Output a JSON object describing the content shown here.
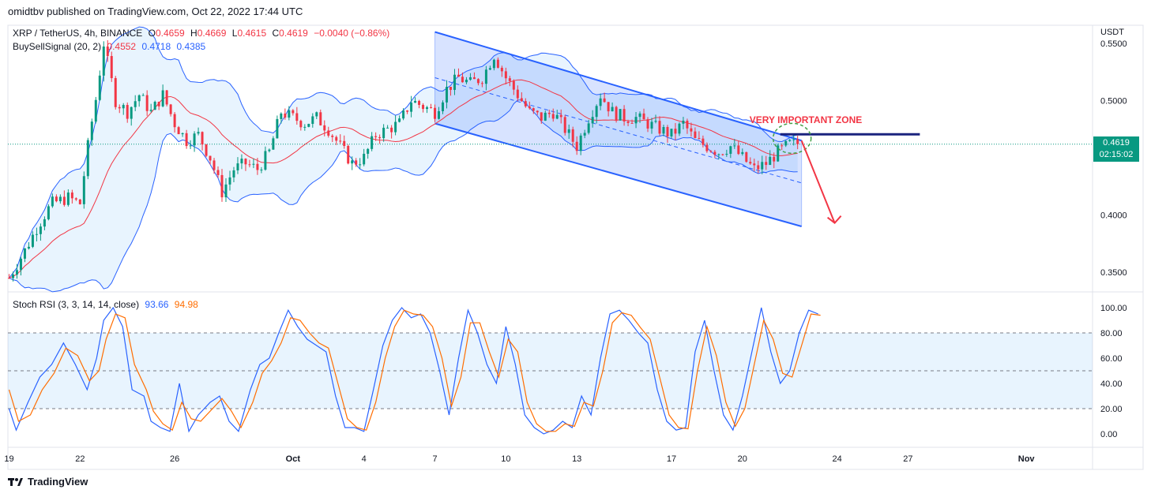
{
  "header": {
    "publisher_line": "omidtbv published on TradingView.com, Oct 22, 2022 17:44 UTC"
  },
  "main_legend": {
    "symbol": "XRP / TetherUS, 4h, BINANCE",
    "open_label": "O",
    "open": "0.4659",
    "high_label": "H",
    "high": "0.4669",
    "low_label": "L",
    "low": "0.4615",
    "close_label": "C",
    "close": "0.4619",
    "change": "−0.0040 (−0.86%)"
  },
  "indicator_legend": {
    "name": "BuySellSignal (20, 2)",
    "v1": "0.4552",
    "v2": "0.4718",
    "v3": "0.4385"
  },
  "stoch_legend": {
    "name": "Stoch RSI (3, 3, 14, 14, close)",
    "k": "93.66",
    "d": "94.98"
  },
  "price_badge": {
    "price": "0.4619",
    "countdown": "02:15:02"
  },
  "annotation": {
    "text": "VERY IMPORTANT ZONE"
  },
  "footer": {
    "brand": "TradingView"
  },
  "colors": {
    "up": "#089981",
    "down": "#f23645",
    "basis": "#f23645",
    "bands": "#2962ff",
    "k_line": "#2962ff",
    "d_line": "#ff6d00",
    "channel": "#2962ff",
    "annotation": "#f23645"
  },
  "chart_data": [
    {
      "type": "candlestick",
      "title": "XRP / TetherUS, 4h, BINANCE",
      "y_axis_unit": "USDT",
      "y_ticks": [
        0.55,
        0.5,
        0.45,
        0.4,
        0.35
      ],
      "y_tick_labels": [
        "0.5500",
        "0.5000",
        "",
        "0.4000",
        "0.3500"
      ],
      "ylim": [
        0.33,
        0.6
      ],
      "x_tick_labels": [
        "19",
        "22",
        "26",
        "Oct",
        "4",
        "7",
        "10",
        "13",
        "17",
        "20",
        "24",
        "27",
        "Nov"
      ],
      "x_tick_days": [
        -11,
        -8,
        -4,
        1,
        4,
        7,
        10,
        13,
        17,
        20,
        24,
        27,
        32
      ],
      "xlim_days": [
        -11.05,
        34.8
      ],
      "last_price": 0.4619,
      "close_path": [
        [
          -11,
          0.345
        ],
        [
          -10.3,
          0.37
        ],
        [
          -9.8,
          0.39
        ],
        [
          -9.2,
          0.41
        ],
        [
          -8.5,
          0.415
        ],
        [
          -8,
          0.41
        ],
        [
          -7.6,
          0.47
        ],
        [
          -7.3,
          0.505
        ],
        [
          -7,
          0.55
        ],
        [
          -6.5,
          0.5
        ],
        [
          -6,
          0.49
        ],
        [
          -5.5,
          0.505
        ],
        [
          -5,
          0.49
        ],
        [
          -4.5,
          0.505
        ],
        [
          -4,
          0.48
        ],
        [
          -3.5,
          0.465
        ],
        [
          -3,
          0.47
        ],
        [
          -2.5,
          0.45
        ],
        [
          -2,
          0.42
        ],
        [
          -1.5,
          0.44
        ],
        [
          -1,
          0.445
        ],
        [
          -0.5,
          0.44
        ],
        [
          0,
          0.455
        ],
        [
          0.5,
          0.49
        ],
        [
          1,
          0.485
        ],
        [
          1.5,
          0.48
        ],
        [
          2,
          0.485
        ],
        [
          2.5,
          0.475
        ],
        [
          3,
          0.46
        ],
        [
          3.5,
          0.445
        ],
        [
          4,
          0.45
        ],
        [
          4.5,
          0.47
        ],
        [
          5,
          0.475
        ],
        [
          5.5,
          0.48
        ],
        [
          6,
          0.5
        ],
        [
          6.5,
          0.495
        ],
        [
          7,
          0.49
        ],
        [
          7.5,
          0.51
        ],
        [
          8,
          0.52
        ],
        [
          8.5,
          0.515
        ],
        [
          9,
          0.52
        ],
        [
          9.5,
          0.54
        ],
        [
          10,
          0.52
        ],
        [
          10.5,
          0.505
        ],
        [
          11,
          0.49
        ],
        [
          11.5,
          0.485
        ],
        [
          12,
          0.49
        ],
        [
          12.5,
          0.475
        ],
        [
          13,
          0.46
        ],
        [
          13.5,
          0.485
        ],
        [
          14,
          0.505
        ],
        [
          14.5,
          0.49
        ],
        [
          15,
          0.485
        ],
        [
          15.5,
          0.485
        ],
        [
          16,
          0.48
        ],
        [
          16.5,
          0.475
        ],
        [
          17,
          0.47
        ],
        [
          17.5,
          0.48
        ],
        [
          18,
          0.465
        ],
        [
          18.5,
          0.46
        ],
        [
          19,
          0.455
        ],
        [
          19.5,
          0.46
        ],
        [
          20,
          0.45
        ],
        [
          20.5,
          0.44
        ],
        [
          21,
          0.445
        ],
        [
          21.5,
          0.455
        ],
        [
          22,
          0.462
        ],
        [
          22.4,
          0.4619
        ]
      ],
      "channel": {
        "upper": [
          [
            7,
            0.56
          ],
          [
            22.5,
            0.465
          ]
        ],
        "lower": [
          [
            7,
            0.48
          ],
          [
            22.5,
            0.39
          ]
        ],
        "mid": [
          [
            7,
            0.52
          ],
          [
            22.5,
            0.428
          ]
        ]
      },
      "zone_line": {
        "price": 0.4705,
        "from_day": 21.6,
        "to_day": 27.5
      },
      "arrow": {
        "from": [
          22.5,
          0.465
        ],
        "to": [
          23.9,
          0.393
        ]
      }
    },
    {
      "type": "line",
      "title": "Stoch RSI (3, 3, 14, 14, close)",
      "y_ticks": [
        100,
        80,
        60,
        40,
        20,
        0
      ],
      "y_tick_labels": [
        "100.00",
        "80.00",
        "60.00",
        "40.00",
        "20.00",
        "0.00"
      ],
      "ylim": [
        -5,
        105
      ],
      "band": [
        20,
        80
      ],
      "series": [
        {
          "key": "k",
          "values": [
            [
              -11,
              20
            ],
            [
              -10.7,
              3
            ],
            [
              -10.2,
              25
            ],
            [
              -9.7,
              45
            ],
            [
              -9.2,
              55
            ],
            [
              -8.7,
              72
            ],
            [
              -8.2,
              55
            ],
            [
              -7.7,
              35
            ],
            [
              -7.3,
              60
            ],
            [
              -7,
              90
            ],
            [
              -6.6,
              100
            ],
            [
              -6.2,
              85
            ],
            [
              -5.8,
              35
            ],
            [
              -5.3,
              30
            ],
            [
              -5,
              10
            ],
            [
              -4.6,
              5
            ],
            [
              -4.2,
              2
            ],
            [
              -3.8,
              40
            ],
            [
              -3.4,
              2
            ],
            [
              -3,
              15
            ],
            [
              -2.5,
              25
            ],
            [
              -2.1,
              30
            ],
            [
              -1.7,
              10
            ],
            [
              -1.3,
              2
            ],
            [
              -0.8,
              35
            ],
            [
              -0.4,
              55
            ],
            [
              0,
              60
            ],
            [
              0.4,
              80
            ],
            [
              0.8,
              98
            ],
            [
              1.2,
              85
            ],
            [
              1.6,
              75
            ],
            [
              2,
              70
            ],
            [
              2.4,
              65
            ],
            [
              2.8,
              30
            ],
            [
              3.2,
              5
            ],
            [
              3.6,
              5
            ],
            [
              4,
              2
            ],
            [
              4.4,
              35
            ],
            [
              4.8,
              70
            ],
            [
              5.2,
              90
            ],
            [
              5.6,
              100
            ],
            [
              6,
              92
            ],
            [
              6.4,
              95
            ],
            [
              6.8,
              80
            ],
            [
              7.2,
              50
            ],
            [
              7.6,
              15
            ],
            [
              8,
              60
            ],
            [
              8.4,
              98
            ],
            [
              8.8,
              80
            ],
            [
              9.2,
              55
            ],
            [
              9.6,
              40
            ],
            [
              10,
              85
            ],
            [
              10.4,
              55
            ],
            [
              10.8,
              15
            ],
            [
              11.2,
              5
            ],
            [
              11.6,
              0
            ],
            [
              12,
              3
            ],
            [
              12.4,
              10
            ],
            [
              12.8,
              5
            ],
            [
              13.2,
              30
            ],
            [
              13.6,
              15
            ],
            [
              14,
              60
            ],
            [
              14.4,
              95
            ],
            [
              14.8,
              98
            ],
            [
              15.2,
              90
            ],
            [
              15.6,
              80
            ],
            [
              16,
              72
            ],
            [
              16.4,
              35
            ],
            [
              16.8,
              10
            ],
            [
              17.2,
              3
            ],
            [
              17.6,
              5
            ],
            [
              18,
              65
            ],
            [
              18.4,
              90
            ],
            [
              18.8,
              50
            ],
            [
              19.2,
              15
            ],
            [
              19.6,
              3
            ],
            [
              20,
              30
            ],
            [
              20.4,
              65
            ],
            [
              20.8,
              100
            ],
            [
              21.2,
              65
            ],
            [
              21.6,
              40
            ],
            [
              22,
              50
            ],
            [
              22.4,
              80
            ],
            [
              22.8,
              98
            ],
            [
              23.2,
              95
            ]
          ]
        },
        {
          "key": "d",
          "values": [
            [
              -11,
              35
            ],
            [
              -10.6,
              10
            ],
            [
              -10.1,
              15
            ],
            [
              -9.6,
              35
            ],
            [
              -9.1,
              48
            ],
            [
              -8.6,
              68
            ],
            [
              -8.1,
              62
            ],
            [
              -7.6,
              42
            ],
            [
              -7.2,
              50
            ],
            [
              -6.9,
              75
            ],
            [
              -6.5,
              95
            ],
            [
              -6.1,
              92
            ],
            [
              -5.7,
              55
            ],
            [
              -5.2,
              35
            ],
            [
              -4.9,
              18
            ],
            [
              -4.5,
              8
            ],
            [
              -4.1,
              3
            ],
            [
              -3.7,
              25
            ],
            [
              -3.3,
              12
            ],
            [
              -2.9,
              10
            ],
            [
              -2.4,
              20
            ],
            [
              -2,
              28
            ],
            [
              -1.6,
              18
            ],
            [
              -1.2,
              5
            ],
            [
              -0.7,
              25
            ],
            [
              -0.3,
              48
            ],
            [
              0.1,
              58
            ],
            [
              0.5,
              72
            ],
            [
              0.9,
              92
            ],
            [
              1.3,
              90
            ],
            [
              1.7,
              80
            ],
            [
              2.1,
              72
            ],
            [
              2.5,
              68
            ],
            [
              2.9,
              40
            ],
            [
              3.3,
              12
            ],
            [
              3.7,
              5
            ],
            [
              4.1,
              3
            ],
            [
              4.5,
              25
            ],
            [
              4.9,
              60
            ],
            [
              5.3,
              85
            ],
            [
              5.7,
              98
            ],
            [
              6.1,
              95
            ],
            [
              6.5,
              94
            ],
            [
              6.9,
              85
            ],
            [
              7.3,
              60
            ],
            [
              7.7,
              22
            ],
            [
              8.1,
              45
            ],
            [
              8.5,
              88
            ],
            [
              8.9,
              88
            ],
            [
              9.3,
              65
            ],
            [
              9.7,
              45
            ],
            [
              10.1,
              75
            ],
            [
              10.5,
              65
            ],
            [
              10.9,
              25
            ],
            [
              11.3,
              8
            ],
            [
              11.7,
              2
            ],
            [
              12.1,
              2
            ],
            [
              12.5,
              8
            ],
            [
              12.9,
              6
            ],
            [
              13.3,
              25
            ],
            [
              13.7,
              22
            ],
            [
              14.1,
              50
            ],
            [
              14.5,
              88
            ],
            [
              14.9,
              96
            ],
            [
              15.3,
              94
            ],
            [
              15.7,
              84
            ],
            [
              16.1,
              75
            ],
            [
              16.5,
              45
            ],
            [
              16.9,
              15
            ],
            [
              17.3,
              5
            ],
            [
              17.7,
              4
            ],
            [
              18.1,
              50
            ],
            [
              18.5,
              85
            ],
            [
              18.9,
              62
            ],
            [
              19.3,
              25
            ],
            [
              19.7,
              6
            ],
            [
              20.1,
              20
            ],
            [
              20.5,
              55
            ],
            [
              20.9,
              90
            ],
            [
              21.3,
              75
            ],
            [
              21.7,
              48
            ],
            [
              22.1,
              45
            ],
            [
              22.5,
              70
            ],
            [
              22.9,
              95
            ],
            [
              23.3,
              94
            ]
          ]
        }
      ]
    }
  ]
}
